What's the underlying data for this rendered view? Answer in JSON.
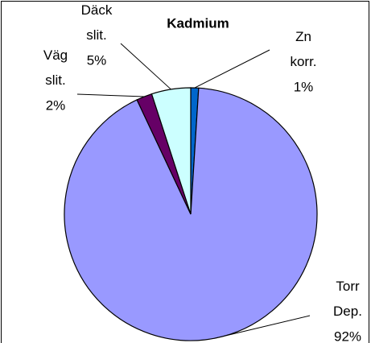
{
  "chart_data": {
    "type": "pie",
    "title": "Kadmium",
    "categories": [
      "Zn korr.",
      "Torr Dep.",
      "Väg slit.",
      "Däck slit."
    ],
    "values": [
      1,
      92,
      2,
      5
    ],
    "value_labels": [
      "1%",
      "92%",
      "2%",
      "5%"
    ],
    "colors": [
      "#0066cc",
      "#9999ff",
      "#660066",
      "#ccffff"
    ]
  }
}
